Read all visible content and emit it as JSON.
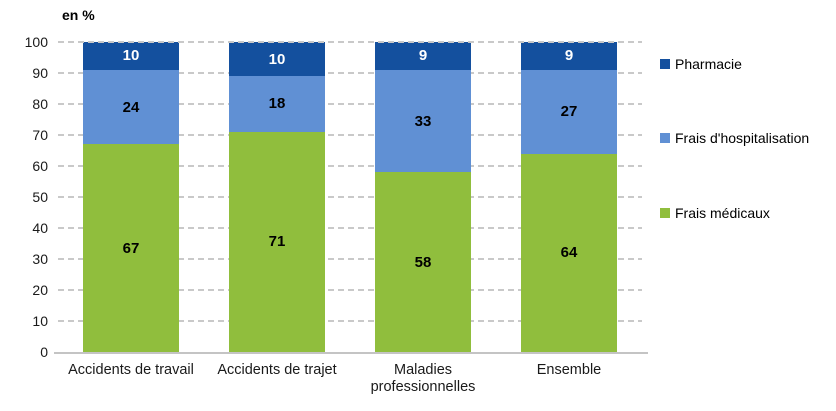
{
  "chart_data": {
    "type": "bar",
    "stacked": true,
    "unit_label": "en %",
    "categories": [
      "Accidents de travail",
      "Accidents de trajet",
      "Maladies professionnelles",
      "Ensemble"
    ],
    "series": [
      {
        "name": "Frais médicaux",
        "color": "#90BE3D",
        "label_color": "#000000",
        "values": [
          67,
          71,
          58,
          64
        ]
      },
      {
        "name": "Frais d'hospitalisation",
        "color": "#6090D4",
        "label_color": "#000000",
        "values": [
          24,
          18,
          33,
          27
        ]
      },
      {
        "name": "Pharmacie",
        "color": "#14509E",
        "label_color": "#ffffff",
        "values": [
          10,
          10,
          9,
          9
        ]
      }
    ],
    "legend_order_top_to_bottom": [
      "Pharmacie",
      "Frais d'hospitalisation",
      "Frais médicaux"
    ],
    "ylim": [
      0,
      100
    ],
    "yticks": [
      0,
      10,
      20,
      30,
      40,
      50,
      60,
      70,
      80,
      90,
      100
    ],
    "grid": "horizontal-dashed",
    "gridline_color": "#c9c9c9",
    "legend_position": "right"
  }
}
